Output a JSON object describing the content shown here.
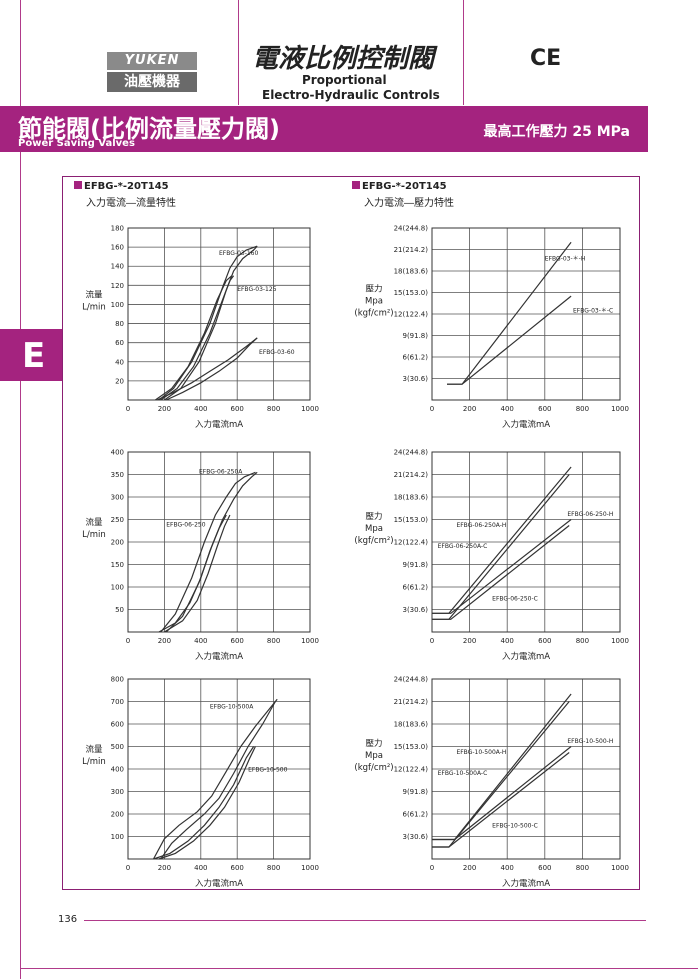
{
  "header": {
    "logo_top": "YUKEN",
    "logo_bottom": "油壓機器",
    "title": "電液比例控制閥",
    "subtitle_line1": "Proportional",
    "subtitle_line2": "Electro-Hydraulic Controls",
    "ce_mark": "CE"
  },
  "section": {
    "title_zh": "節能閥(比例流量壓力閥)",
    "title_en": "Power Saving Valves",
    "max_pressure": "最高工作壓力 25 MPa",
    "tab_letter": "E"
  },
  "columns": {
    "left_title": "EFBG-*-20T145",
    "left_subtitle": "入力電流―流量特性",
    "right_title": "EFBG-*-20T145",
    "right_subtitle": "入力電流―壓力特性"
  },
  "footer": {
    "page_number": "136"
  },
  "colors": {
    "accent": "#a4237f",
    "curve": "#333333"
  },
  "chart_data": [
    {
      "type": "line",
      "ylabel": [
        "流量",
        "L/min"
      ],
      "xlabel": "入力電流mA",
      "xlim": [
        0,
        1000
      ],
      "xticks": [
        0,
        200,
        400,
        600,
        800,
        1000
      ],
      "ylim": [
        0,
        180
      ],
      "yticks": [
        20,
        40,
        60,
        80,
        100,
        120,
        140,
        160,
        180
      ],
      "series": [
        {
          "name": "EFBG-03-160",
          "x": [
            170,
            250,
            350,
            450,
            520,
            560,
            600,
            650,
            710
          ],
          "y": [
            0,
            12,
            40,
            80,
            118,
            138,
            150,
            157,
            161
          ]
        },
        {
          "name": "EFBG-03-160",
          "x": [
            200,
            290,
            390,
            480,
            540,
            580,
            630,
            690,
            710
          ],
          "y": [
            0,
            12,
            40,
            80,
            115,
            135,
            148,
            157,
            161
          ]
        },
        {
          "name": "EFBG-03-125",
          "x": [
            150,
            240,
            330,
            420,
            490,
            540,
            570
          ],
          "y": [
            0,
            12,
            35,
            70,
            105,
            125,
            130
          ]
        },
        {
          "name": "EFBG-03-125",
          "x": [
            180,
            270,
            360,
            450,
            520,
            560,
            580
          ],
          "y": [
            0,
            12,
            35,
            70,
            105,
            125,
            130
          ]
        },
        {
          "name": "EFBG-03-60",
          "x": [
            160,
            250,
            350,
            450,
            550,
            650,
            710
          ],
          "y": [
            0,
            8,
            18,
            30,
            42,
            56,
            65
          ]
        },
        {
          "name": "EFBG-03-60",
          "x": [
            210,
            300,
            400,
            500,
            600,
            670,
            710
          ],
          "y": [
            0,
            8,
            18,
            30,
            44,
            58,
            65
          ]
        }
      ],
      "labels": [
        {
          "text": "EFBG-03-160",
          "x": 500,
          "y": 152
        },
        {
          "text": "EFBG-03-125",
          "x": 600,
          "y": 114
        },
        {
          "text": "EFBG-03-60",
          "x": 720,
          "y": 48
        }
      ]
    },
    {
      "type": "line",
      "ylabel": [
        "壓力",
        "Mpa",
        "(kgf/cm²)"
      ],
      "xlabel": "入力電流mA",
      "xlim": [
        0,
        1000
      ],
      "xticks": [
        0,
        200,
        400,
        600,
        800,
        1000
      ],
      "ylim": [
        0,
        24
      ],
      "yticks": [
        3,
        6,
        9,
        12,
        15,
        18,
        21,
        24
      ],
      "yticklabels": [
        "3(30.6)",
        "6(61.2)",
        "9(91.8)",
        "12(122.4)",
        "15(153.0)",
        "18(183.6)",
        "21(214.2)",
        "24(244.8)"
      ],
      "series": [
        {
          "name": "EFBG-03-＊-H",
          "x": [
            80,
            160,
            740
          ],
          "y": [
            2.2,
            2.2,
            22
          ]
        },
        {
          "name": "EFBG-03-＊-C",
          "x": [
            80,
            160,
            740
          ],
          "y": [
            2.2,
            2.2,
            14.5
          ]
        }
      ],
      "labels": [
        {
          "text": "EFBG-03-＊-H",
          "x": 600,
          "y": 19.5
        },
        {
          "text": "EFBG-03-＊-C",
          "x": 750,
          "y": 12.2
        }
      ]
    },
    {
      "type": "line",
      "ylabel": [
        "流量",
        "L/min"
      ],
      "xlabel": "入力電流mA",
      "xlim": [
        0,
        1000
      ],
      "xticks": [
        0,
        200,
        400,
        600,
        800,
        1000
      ],
      "ylim": [
        0,
        400
      ],
      "yticks": [
        50,
        100,
        150,
        200,
        250,
        300,
        350,
        400
      ],
      "series": [
        {
          "name": "EFBG-06-250A",
          "x": [
            180,
            260,
            350,
            420,
            480,
            540,
            590,
            640,
            700
          ],
          "y": [
            0,
            40,
            120,
            200,
            260,
            300,
            330,
            345,
            355
          ]
        },
        {
          "name": "EFBG-06-250A",
          "x": [
            210,
            300,
            390,
            460,
            520,
            580,
            630,
            680,
            710
          ],
          "y": [
            0,
            35,
            110,
            190,
            250,
            295,
            325,
            345,
            355
          ]
        },
        {
          "name": "EFBG-06-250",
          "x": [
            170,
            260,
            340,
            400,
            450,
            500,
            540
          ],
          "y": [
            0,
            20,
            65,
            120,
            180,
            230,
            260
          ]
        },
        {
          "name": "EFBG-06-250",
          "x": [
            200,
            300,
            380,
            440,
            490,
            530,
            560
          ],
          "y": [
            0,
            25,
            70,
            130,
            190,
            235,
            260
          ]
        }
      ],
      "labels": [
        {
          "text": "EFBG-06-250A",
          "x": 390,
          "y": 352
        },
        {
          "text": "EFBG-06-250",
          "x": 210,
          "y": 235
        }
      ]
    },
    {
      "type": "line",
      "ylabel": [
        "壓力",
        "Mpa",
        "(kgf/cm²)"
      ],
      "xlabel": "入力電流mA",
      "xlim": [
        0,
        1000
      ],
      "xticks": [
        0,
        200,
        400,
        600,
        800,
        1000
      ],
      "ylim": [
        0,
        24
      ],
      "yticks": [
        3,
        6,
        9,
        12,
        15,
        18,
        21,
        24
      ],
      "yticklabels": [
        "3(30.6)",
        "6(61.2)",
        "9(91.8)",
        "12(122.4)",
        "15(153.0)",
        "18(183.6)",
        "21(214.2)",
        "24(244.8)"
      ],
      "series": [
        {
          "name": "EFBG-06-250A-H",
          "x": [
            0,
            90,
            740
          ],
          "y": [
            2.5,
            2.5,
            22
          ]
        },
        {
          "name": "EFBG-06-250A-H",
          "x": [
            0,
            90,
            730
          ],
          "y": [
            1.7,
            1.7,
            21
          ]
        },
        {
          "name": "EFBG-06-250A-C",
          "x": [
            0,
            100,
            740
          ],
          "y": [
            2.5,
            2.5,
            15
          ]
        },
        {
          "name": "EFBG-06-250A-C",
          "x": [
            0,
            100,
            730
          ],
          "y": [
            1.7,
            1.7,
            14.2
          ]
        }
      ],
      "labels": [
        {
          "text": "EFBG-06-250-H",
          "x": 720,
          "y": 15.5
        },
        {
          "text": "EFBG-06-250A-H",
          "x": 130,
          "y": 14
        },
        {
          "text": "EFBG-06-250A-C",
          "x": 30,
          "y": 11.2
        },
        {
          "text": "EFBG-06-250-C",
          "x": 320,
          "y": 4.2
        }
      ]
    },
    {
      "type": "line",
      "ylabel": [
        "流量",
        "L/min"
      ],
      "xlabel": "入力電流mA",
      "xlim": [
        0,
        1000
      ],
      "xticks": [
        0,
        200,
        400,
        600,
        800,
        1000
      ],
      "ylim": [
        0,
        800
      ],
      "yticks": [
        100,
        200,
        300,
        400,
        500,
        600,
        700,
        800
      ],
      "series": [
        {
          "name": "EFBG-10-500A",
          "x": [
            140,
            200,
            280,
            380,
            460,
            540,
            620,
            700,
            820
          ],
          "y": [
            0,
            90,
            150,
            210,
            280,
            390,
            500,
            590,
            710
          ]
        },
        {
          "name": "EFBG-10-500A",
          "x": [
            180,
            240,
            320,
            420,
            500,
            580,
            660,
            740,
            810
          ],
          "y": [
            0,
            70,
            130,
            200,
            270,
            380,
            500,
            600,
            700
          ]
        },
        {
          "name": "EFBG-10-500",
          "x": [
            140,
            230,
            330,
            420,
            500,
            580,
            650,
            690
          ],
          "y": [
            0,
            25,
            80,
            150,
            230,
            330,
            450,
            500
          ]
        },
        {
          "name": "EFBG-10-500",
          "x": [
            170,
            260,
            360,
            450,
            530,
            610,
            670,
            700
          ],
          "y": [
            0,
            25,
            80,
            150,
            230,
            340,
            450,
            500
          ]
        }
      ],
      "labels": [
        {
          "text": "EFBG-10-500A",
          "x": 450,
          "y": 670
        },
        {
          "text": "EFBG-10-500",
          "x": 660,
          "y": 390
        }
      ]
    },
    {
      "type": "line",
      "ylabel": [
        "壓力",
        "Mpa",
        "(kgf/cm²)"
      ],
      "xlabel": "入力電流mA",
      "xlim": [
        0,
        1000
      ],
      "xticks": [
        0,
        200,
        400,
        600,
        800,
        1000
      ],
      "ylim": [
        0,
        24
      ],
      "yticks": [
        3,
        6,
        9,
        12,
        15,
        18,
        21,
        24
      ],
      "yticklabels": [
        "3(30.6)",
        "6(61.2)",
        "9(91.8)",
        "12(122.4)",
        "15(153.0)",
        "18(183.6)",
        "21(214.2)",
        "24(244.8)"
      ],
      "series": [
        {
          "name": "EFBG-10-500A-H",
          "x": [
            0,
            120,
            740
          ],
          "y": [
            2.6,
            2.6,
            22
          ]
        },
        {
          "name": "EFBG-10-500A-H",
          "x": [
            0,
            90,
            730
          ],
          "y": [
            1.6,
            1.6,
            21
          ]
        },
        {
          "name": "EFBG-10-500A-C",
          "x": [
            0,
            120,
            740
          ],
          "y": [
            2.6,
            2.6,
            15
          ]
        },
        {
          "name": "EFBG-10-500A-C",
          "x": [
            0,
            90,
            730
          ],
          "y": [
            1.6,
            1.6,
            14.2
          ]
        }
      ],
      "labels": [
        {
          "text": "EFBG-10-500-H",
          "x": 720,
          "y": 15.5
        },
        {
          "text": "EFBG-10-500A-H",
          "x": 130,
          "y": 14
        },
        {
          "text": "EFBG-10-500A-C",
          "x": 30,
          "y": 11.2
        },
        {
          "text": "EFBG-10-500-C",
          "x": 320,
          "y": 4.2
        }
      ]
    }
  ]
}
